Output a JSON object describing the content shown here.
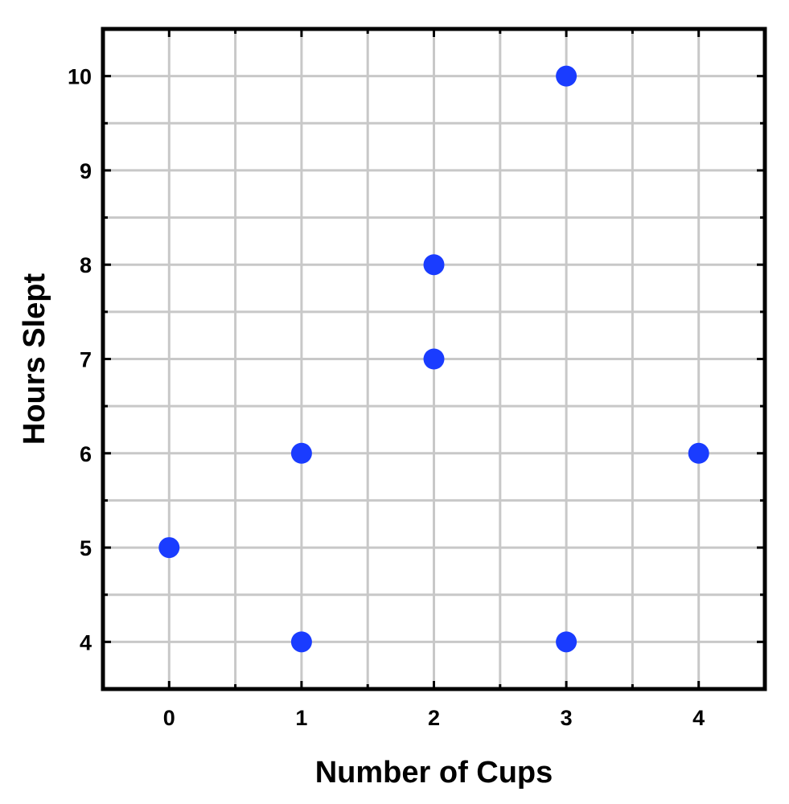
{
  "chart_data": {
    "type": "scatter",
    "title": "",
    "xlabel": "Number of Cups",
    "ylabel": "Hours Slept",
    "xlim": [
      -0.5,
      4.5
    ],
    "ylim": [
      3.5,
      10.5
    ],
    "xticks": [
      0,
      1,
      2,
      3,
      4
    ],
    "yticks": [
      4,
      5,
      6,
      7,
      8,
      9,
      10
    ],
    "grid": true,
    "legend": "none",
    "colors": {
      "points": "#1a3cff",
      "grid": "#c8c8c8",
      "frame": "#000000"
    },
    "series": [
      {
        "points": [
          {
            "x": 0,
            "y": 5
          },
          {
            "x": 1,
            "y": 6
          },
          {
            "x": 1,
            "y": 4
          },
          {
            "x": 2,
            "y": 8
          },
          {
            "x": 2,
            "y": 7
          },
          {
            "x": 3,
            "y": 10
          },
          {
            "x": 3,
            "y": 4
          },
          {
            "x": 4,
            "y": 6
          }
        ]
      }
    ]
  }
}
